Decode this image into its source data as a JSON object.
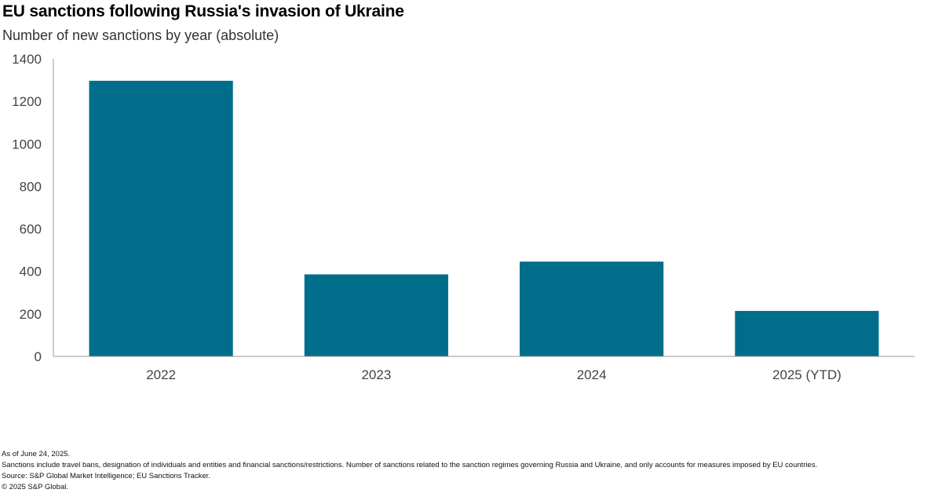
{
  "header": {
    "title": "EU sanctions following Russia's invasion of Ukraine",
    "subtitle": "Number of new sanctions by year (absolute)"
  },
  "chart_data": {
    "type": "bar",
    "categories": [
      "2022",
      "2023",
      "2024",
      "2025 (YTD)"
    ],
    "values": [
      1297,
      386,
      446,
      214
    ],
    "ylim": [
      0,
      1400
    ],
    "yticks": [
      0,
      200,
      400,
      600,
      800,
      1000,
      1200,
      1400
    ],
    "xlabel": "",
    "ylabel": "",
    "grid": false,
    "bar_color": "#006E8A",
    "axis_color": "#999999"
  },
  "footnotes": {
    "as_of": "As of June 24, 2025.",
    "note": "Sanctions include travel bans, designation of individuals and entities and financial sanctions/restrictions. Number of sanctions related to the sanction regimes governing Russia and Ukraine, and only accounts for measures imposed by EU countries.",
    "source": "Source: S&P Global Market Intelligence; EU Sanctions Tracker.",
    "copyright": "© 2025 S&P Global."
  }
}
